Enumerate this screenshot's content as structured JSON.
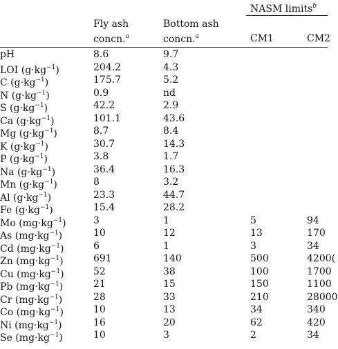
{
  "header": {
    "nasm": "NASM limits",
    "nasm_note": "b",
    "fly_line1": "Fly ash",
    "fly_line2": "concn.",
    "fly_note": "a",
    "bottom_line1": "Bottom ash",
    "bottom_line2": "concn.",
    "bottom_note": "a",
    "cm1": "CM1",
    "cm2": "CM2"
  },
  "rows": [
    {
      "param": "pH",
      "exp": "",
      "fly": "8.6",
      "bottom": "9.7",
      "cm1": "",
      "cm2": ""
    },
    {
      "param": "LOI (g·kg",
      "exp": "−1",
      "fly": "204.2",
      "bottom": "4.3",
      "cm1": "",
      "cm2": ""
    },
    {
      "param": "C (g·kg",
      "exp": "−1",
      "fly": "175.7",
      "bottom": "5.2",
      "cm1": "",
      "cm2": ""
    },
    {
      "param": "N (g·kg",
      "exp": "−1",
      "fly": "0.9",
      "bottom": "nd",
      "cm1": "",
      "cm2": ""
    },
    {
      "param": "S (g·kg",
      "exp": "−1",
      "fly": "42.2",
      "bottom": "2.9",
      "cm1": "",
      "cm2": ""
    },
    {
      "param": "Ca (g·kg",
      "exp": "−1",
      "fly": "101.1",
      "bottom": "43.6",
      "cm1": "",
      "cm2": ""
    },
    {
      "param": "Mg (g·kg",
      "exp": "−1",
      "fly": "8.7",
      "bottom": "8.4",
      "cm1": "",
      "cm2": ""
    },
    {
      "param": "K (g·kg",
      "exp": "−1",
      "fly": "30.7",
      "bottom": "14.3",
      "cm1": "",
      "cm2": ""
    },
    {
      "param": "P (g·kg",
      "exp": "−1",
      "fly": "3.8",
      "bottom": "1.7",
      "cm1": "",
      "cm2": ""
    },
    {
      "param": "Na (g·kg",
      "exp": "−1",
      "fly": "36.4",
      "bottom": "16.3",
      "cm1": "",
      "cm2": ""
    },
    {
      "param": "Mn (g·kg",
      "exp": "−1",
      "fly": "8",
      "bottom": "3.2",
      "cm1": "",
      "cm2": ""
    },
    {
      "param": "Al (g·kg",
      "exp": "−1",
      "fly": "23.3",
      "bottom": "44.7",
      "cm1": "",
      "cm2": ""
    },
    {
      "param": "Fe (g·kg",
      "exp": "−1",
      "fly": "15.4",
      "bottom": "28.2",
      "cm1": "",
      "cm2": ""
    },
    {
      "param": "Mo (mg·kg",
      "exp": "−1",
      "fly": "3",
      "bottom": "1",
      "cm1": "5",
      "cm2": "94"
    },
    {
      "param": "As (mg·kg",
      "exp": "−1",
      "fly": "10",
      "bottom": "12",
      "cm1": "13",
      "cm2": "170"
    },
    {
      "param": "Cd (mg·kg",
      "exp": "−1",
      "fly": "6",
      "bottom": "1",
      "cm1": "3",
      "cm2": "34"
    },
    {
      "param": "Zn (mg·kg",
      "exp": "−1",
      "fly": "691",
      "bottom": "140",
      "cm1": "500",
      "cm2": "4200("
    },
    {
      "param": "Cu (mg·kg",
      "exp": "−1",
      "fly": "52",
      "bottom": "38",
      "cm1": "100",
      "cm2": "1700"
    },
    {
      "param": "Pb (mg·kg",
      "exp": "−1",
      "fly": "21",
      "bottom": "15",
      "cm1": "150",
      "cm2": "1100"
    },
    {
      "param": "Cr (mg·kg",
      "exp": "−1",
      "fly": "28",
      "bottom": "33",
      "cm1": "210",
      "cm2": "28000"
    },
    {
      "param": "Co (mg·kg",
      "exp": "−1",
      "fly": "10",
      "bottom": "13",
      "cm1": "34",
      "cm2": "340"
    },
    {
      "param": "Ni (mg·kg",
      "exp": "−1",
      "fly": "16",
      "bottom": "20",
      "cm1": "62",
      "cm2": "420"
    },
    {
      "param": "Se (mg·kg",
      "exp": "−1",
      "fly": "10",
      "bottom": "3",
      "cm1": "2",
      "cm2": "34"
    }
  ]
}
